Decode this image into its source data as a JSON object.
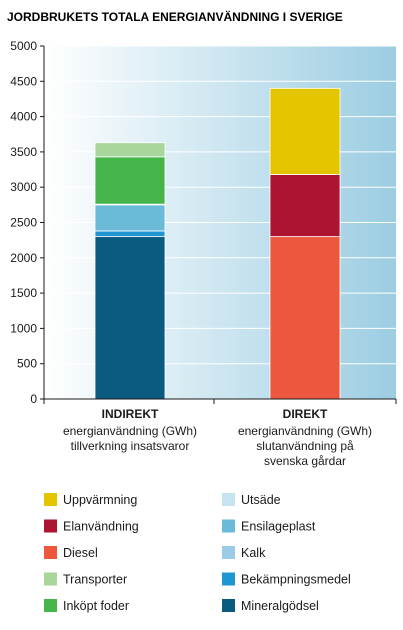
{
  "chart_data": {
    "type": "bar",
    "stacked": true,
    "title": "JORDBRUKETS TOTALA ENERGIANVÄNDNING I SVERIGE",
    "ylim": [
      0,
      5000
    ],
    "yticks": [
      0,
      500,
      1000,
      1500,
      2000,
      2500,
      3000,
      3500,
      4000,
      4500,
      5000
    ],
    "categories": [
      {
        "label": "INDIREKT",
        "sublines": [
          "energianvändning (GWh)",
          "tillverkning insatsvaror"
        ]
      },
      {
        "label": "DIREKT",
        "sublines": [
          "energianvändning (GWh)",
          "slutanvändning på",
          "svenska gårdar"
        ]
      }
    ],
    "series": [
      {
        "name": "Mineralgödsel",
        "color": "#0b5a80",
        "values": [
          2300,
          0
        ]
      },
      {
        "name": "Bekämpningsmedel",
        "color": "#1e96d2",
        "values": [
          80,
          0
        ]
      },
      {
        "name": "Kalk",
        "color": "#9ccbe6",
        "values": [
          0,
          0
        ]
      },
      {
        "name": "Ensilageplast",
        "color": "#6bbad8",
        "values": [
          370,
          0
        ]
      },
      {
        "name": "Utsäde",
        "color": "#c6e3f2",
        "values": [
          10,
          0
        ]
      },
      {
        "name": "Inköpt foder",
        "color": "#45b549",
        "values": [
          670,
          0
        ]
      },
      {
        "name": "Transporter",
        "color": "#a9d69a",
        "values": [
          200,
          0
        ]
      },
      {
        "name": "Diesel",
        "color": "#ec573e",
        "values": [
          0,
          2300
        ]
      },
      {
        "name": "Elanvändning",
        "color": "#ac1432",
        "values": [
          0,
          880
        ]
      },
      {
        "name": "Uppvärmning",
        "color": "#e3c500",
        "values": [
          0,
          1220
        ]
      }
    ],
    "legend": {
      "placement": "bottom",
      "left_column": [
        "Uppvärmning",
        "Elanvändning",
        "Diesel",
        "Transporter",
        "Inköpt foder"
      ],
      "right_column": [
        "Utsäde",
        "Ensilageplast",
        "Kalk",
        "Bekämpningsmedel",
        "Mineralgödsel"
      ]
    },
    "background_gradient": [
      "#ffffff",
      "#9ccde2"
    ]
  }
}
